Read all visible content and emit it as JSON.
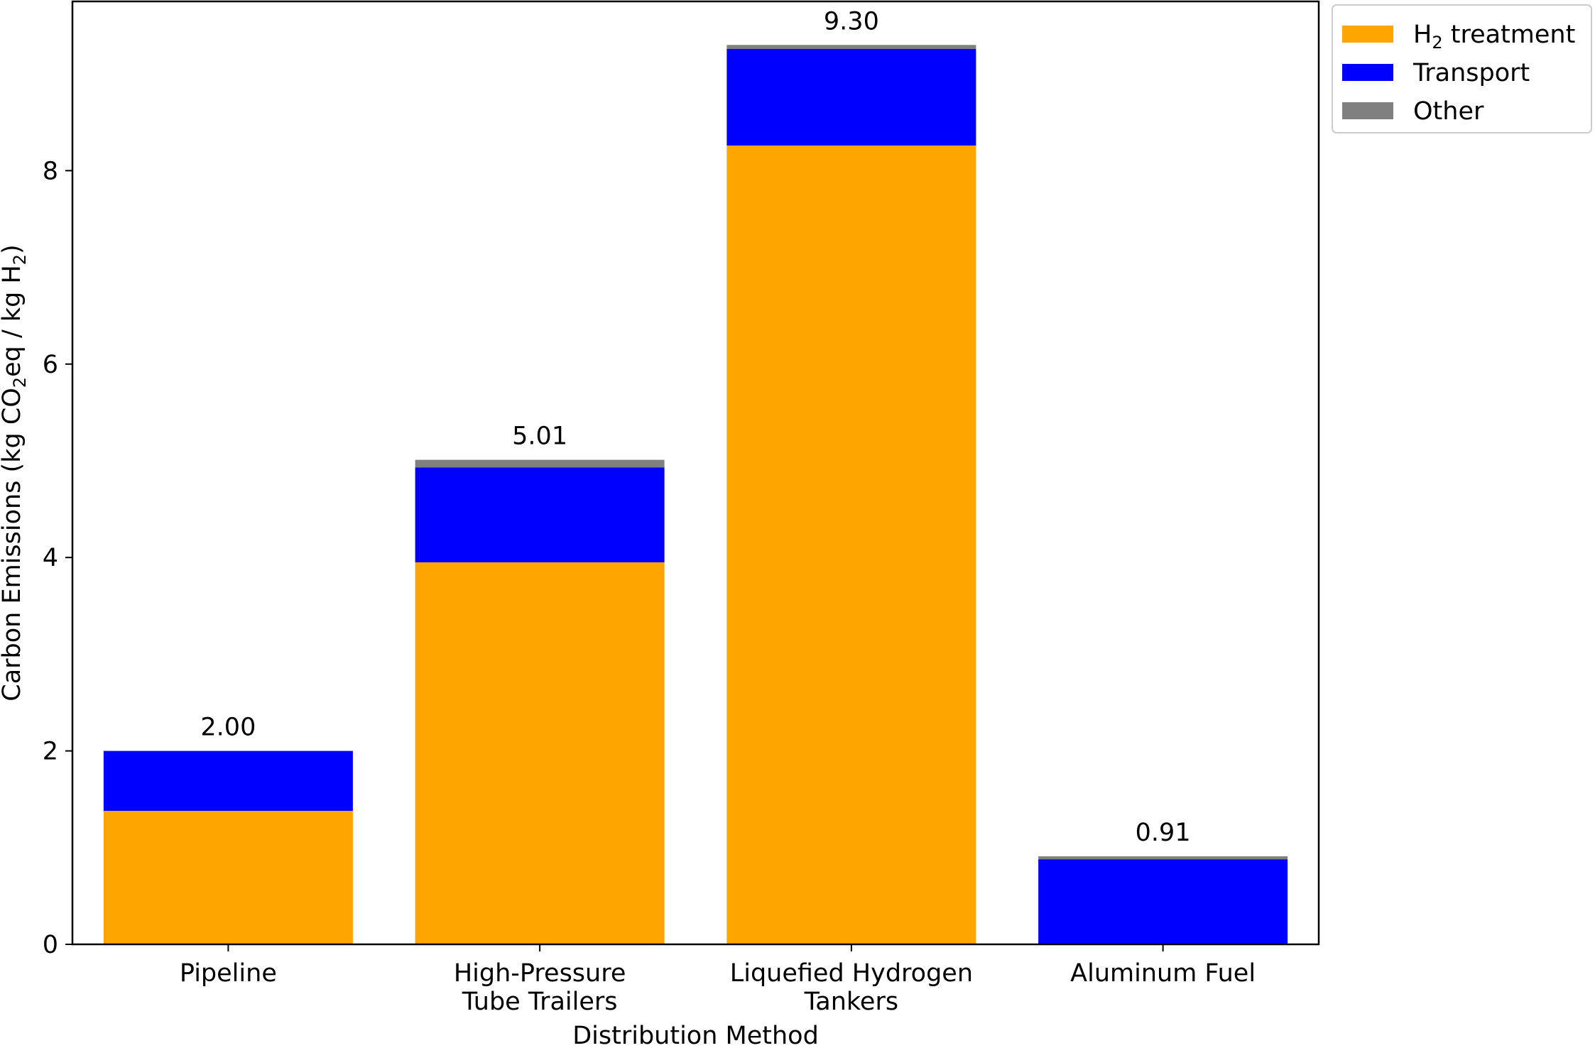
{
  "chart_data": {
    "type": "bar",
    "stacked": true,
    "title": "",
    "xlabel": "Distribution Method",
    "ylabel": {
      "prefix": "Carbon Emissions (kg CO",
      "sub1": "2",
      "middle": "eq / kg H",
      "sub2": "2",
      "suffix": ")"
    },
    "ylim": [
      0,
      9.75
    ],
    "yticks": [
      0,
      2,
      4,
      6,
      8
    ],
    "grid": false,
    "legend_position": "outside top-right",
    "categories": [
      [
        "Pipeline"
      ],
      [
        "High-Pressure",
        "Tube Trailers"
      ],
      [
        "Liquefied Hydrogen",
        "Tankers"
      ],
      [
        "Aluminum Fuel"
      ]
    ],
    "series": [
      {
        "name": "H2 treatment",
        "legend_base": "H",
        "legend_sub": "2",
        "legend_rest": " treatment",
        "color": "#FFA500",
        "values": [
          1.38,
          3.95,
          8.26,
          0.0
        ]
      },
      {
        "name": "Transport",
        "color": "#0000FF",
        "values": [
          0.62,
          0.98,
          1.0,
          0.88
        ]
      },
      {
        "name": "Other",
        "color": "#808080",
        "values": [
          0.0,
          0.08,
          0.04,
          0.03
        ]
      }
    ],
    "totals": [
      "2.00",
      "5.01",
      "9.30",
      "0.91"
    ]
  }
}
